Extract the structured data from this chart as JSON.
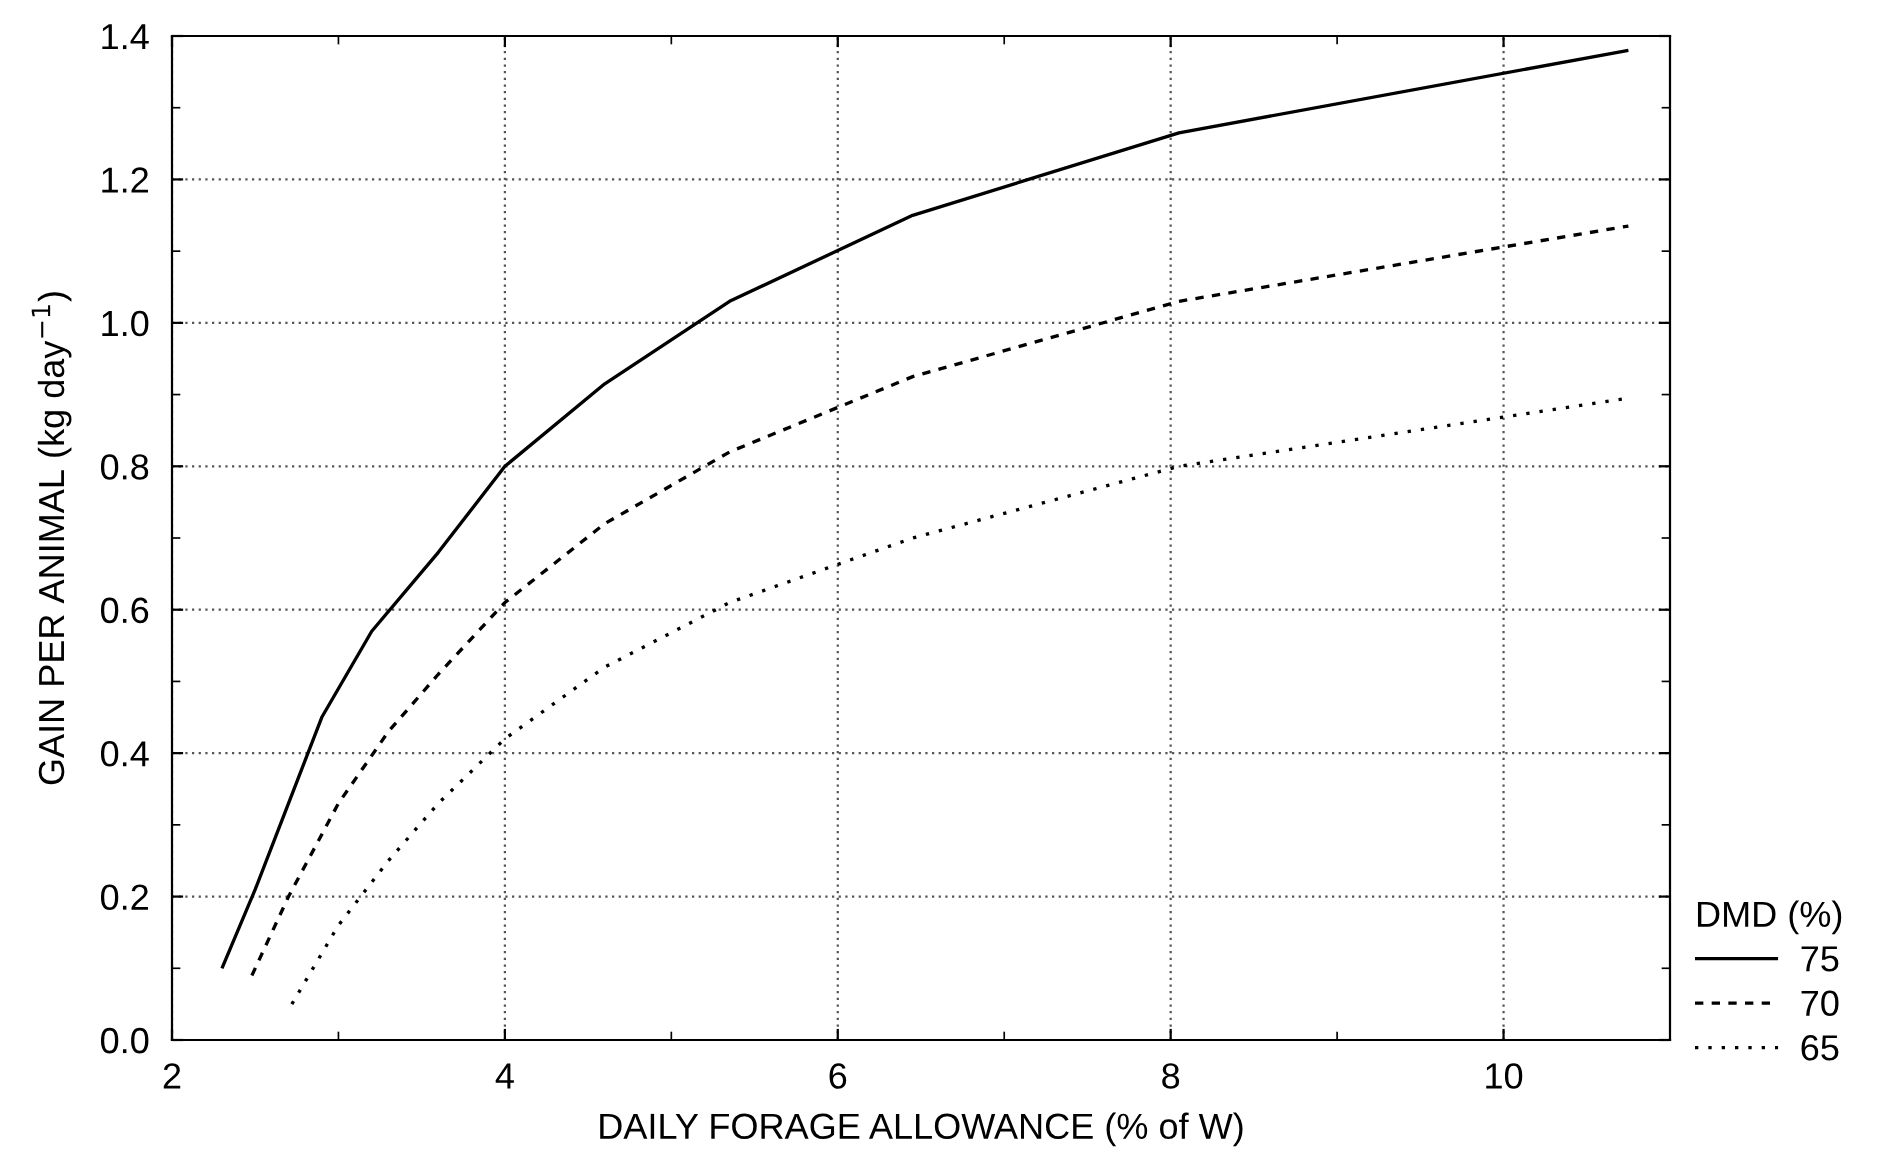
{
  "chart_data": {
    "type": "line",
    "xlabel": "DAILY FORAGE ALLOWANCE (% of W)",
    "ylabel": "GAIN PER ANIMAL (kg day$^{−1}$)",
    "legend_title": "DMD (%)",
    "legend": "bottom right",
    "xlim": [
      2,
      11
    ],
    "xticks": [
      2,
      {
        "value": 3,
        "label": null
      },
      4,
      {
        "value": 5,
        "label": null
      },
      6,
      {
        "value": 7,
        "label": null
      },
      8,
      {
        "value": 9,
        "label": null
      },
      10,
      {
        "value": 11,
        "label": null
      }
    ],
    "ylim": [
      0,
      1.4
    ],
    "yticks": [
      "0.0",
      {
        "value": 0.1,
        "label": null
      },
      0.2,
      {
        "value": 0.3,
        "label": null
      },
      0.4,
      {
        "value": 0.5,
        "label": null
      },
      0.6,
      {
        "value": 0.7,
        "label": null
      },
      0.8,
      {
        "value": 0.9,
        "label": null
      },
      {
        "value": 1.0,
        "label": "1.0"
      },
      {
        "value": 1.1,
        "label": null
      },
      1.2,
      {
        "value": 1.3,
        "label": null
      },
      1.4
    ],
    "grid": true,
    "marker": "none",
    "series": [
      {
        "name": "75",
        "color": "#000000",
        "line_style": "solid",
        "x": [
          2.3,
          2.5,
          2.7,
          2.9,
          3.2,
          3.6,
          4.0,
          4.6,
          5.35,
          6.45,
          8.05,
          10.75
        ],
        "values": [
          0.1,
          0.21,
          0.33,
          0.45,
          0.57,
          0.68,
          0.8,
          0.915,
          1.03,
          1.15,
          1.265,
          1.38
        ]
      },
      {
        "name": "70",
        "color": "#000000",
        "line_style": "dashed",
        "x": [
          2.48,
          2.7,
          3.0,
          3.3,
          3.6,
          4.0,
          4.6,
          5.35,
          6.45,
          8.05,
          10.75
        ],
        "values": [
          0.09,
          0.2,
          0.33,
          0.43,
          0.51,
          0.61,
          0.72,
          0.82,
          0.925,
          1.03,
          1.135
        ]
      },
      {
        "name": "65",
        "color": "#000000",
        "line_style": "dotted",
        "x": [
          2.72,
          3.0,
          3.3,
          3.6,
          4.0,
          4.6,
          5.35,
          6.45,
          8.05,
          10.75
        ],
        "values": [
          0.05,
          0.16,
          0.25,
          0.33,
          0.42,
          0.52,
          0.61,
          0.7,
          0.8,
          0.895
        ]
      }
    ]
  }
}
